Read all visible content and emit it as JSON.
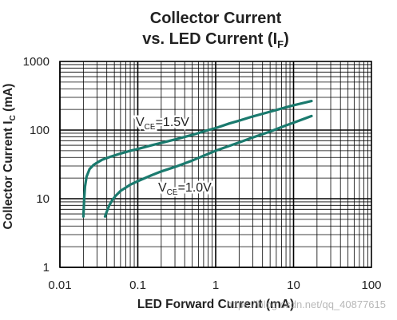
{
  "chart_data": {
    "type": "line",
    "title_line1": "Collector Current",
    "title_line2_main": "vs. LED Current (I",
    "title_line2_sub": "F",
    "title_line2_end": ")",
    "xlabel": "LED Forward Current (mA)",
    "ylabel_main": "Collector Current I",
    "ylabel_sub": "C",
    "ylabel_end": " (mA)",
    "xscale": "log",
    "yscale": "log",
    "xlim": [
      0.01,
      100
    ],
    "ylim": [
      1,
      1000
    ],
    "x_tick_labels": [
      "0.01",
      "0.1",
      "1",
      "10",
      "100"
    ],
    "y_tick_labels": [
      "1",
      "10",
      "100",
      "1000"
    ],
    "grid": true,
    "series": [
      {
        "label_main": "V",
        "label_sub": "CE",
        "label_end": "=1.5V",
        "x": [
          0.02,
          0.0205,
          0.021,
          0.022,
          0.024,
          0.027,
          0.03,
          0.035,
          0.045,
          0.06,
          0.08,
          0.1,
          0.15,
          0.2,
          0.3,
          0.5,
          0.8,
          1,
          1.5,
          2,
          3,
          5,
          8,
          10,
          17
        ],
        "y": [
          5.5,
          10,
          15,
          21,
          27,
          31,
          33.5,
          37,
          41,
          45.5,
          50,
          53,
          60,
          65,
          73,
          85,
          100,
          107,
          125,
          137,
          158,
          185,
          215,
          230,
          265
        ]
      },
      {
        "label_main": "V",
        "label_sub": "CE",
        "label_end": "=1.0V",
        "x": [
          0.038,
          0.04,
          0.043,
          0.047,
          0.052,
          0.06,
          0.07,
          0.08,
          0.1,
          0.15,
          0.2,
          0.3,
          0.5,
          0.8,
          1,
          1.5,
          2,
          3,
          5,
          8,
          10,
          17
        ],
        "y": [
          5.5,
          6.5,
          8,
          9.5,
          11,
          13,
          14.5,
          16,
          18,
          22,
          25,
          29,
          36,
          45,
          50,
          59,
          66,
          78,
          95,
          117,
          128,
          160
        ]
      }
    ]
  },
  "watermark": "https://blog.csdn.net/qq_40877615",
  "colors": {
    "curve": "#1a7a6e",
    "grid": "#000000",
    "text": "#222222"
  }
}
